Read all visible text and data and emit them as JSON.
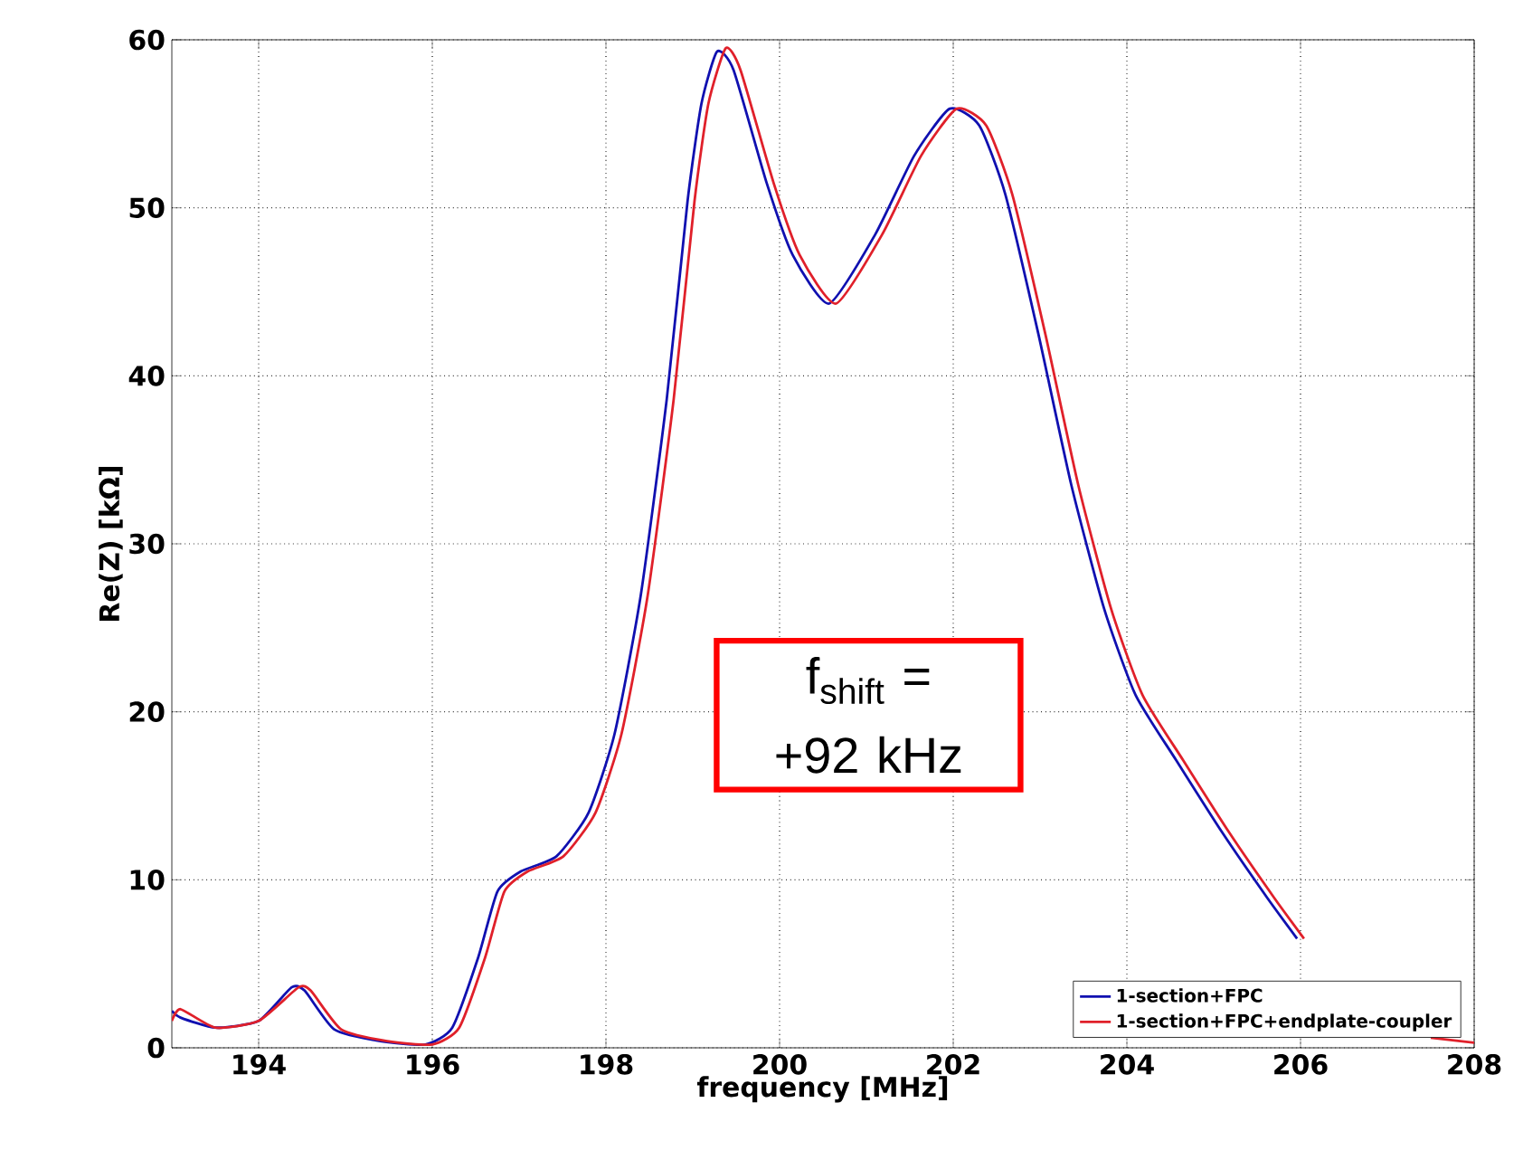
{
  "chart_data": {
    "type": "line",
    "xlabel": "frequency [MHz]",
    "ylabel": "Re(Z) [kΩ]",
    "xlim": [
      193,
      208
    ],
    "xticks": [
      194,
      196,
      198,
      200,
      202,
      204,
      206,
      208
    ],
    "ylim": [
      0,
      60
    ],
    "yticks": [
      0,
      10,
      20,
      30,
      40,
      50,
      60
    ],
    "grid": true,
    "legend": "bottom right",
    "line_style": "solid",
    "marker": "none",
    "annotations": [
      "f$_{shift}$ = +92 kHz"
    ],
    "series": [
      {
        "name": "1-section+FPC",
        "color": "#1010b0",
        "x": [
          193.0,
          193.1,
          193.5,
          194.0,
          194.38,
          194.53,
          194.87,
          195.4,
          195.92,
          196.23,
          196.53,
          196.75,
          197.02,
          197.43,
          197.8,
          198.1,
          198.4,
          198.7,
          198.94,
          199.1,
          199.28,
          199.47,
          199.85,
          200.15,
          200.57,
          201.1,
          201.55,
          201.96,
          202.3,
          202.6,
          202.98,
          203.36,
          203.74,
          204.1,
          204.57,
          205.1,
          205.62,
          205.96
        ],
        "values": [
          2.2,
          1.8,
          1.2,
          1.6,
          3.6,
          3.4,
          1.1,
          0.4,
          0.2,
          1.2,
          5.4,
          9.3,
          10.5,
          11.4,
          14,
          18.7,
          26.9,
          38.6,
          50.4,
          56.2,
          59.3,
          58.2,
          51.5,
          47.2,
          44.3,
          48.4,
          53.1,
          55.9,
          54.9,
          50.8,
          42.5,
          33.5,
          26.1,
          21.0,
          17.1,
          12.8,
          8.9,
          6.5
        ]
      },
      {
        "name": "1-section+FPC+endplate-coupler",
        "color": "#e0202a",
        "x": [
          193.0,
          193.1,
          193.5,
          194.0,
          194.46,
          194.6,
          194.95,
          195.48,
          196.0,
          196.31,
          196.61,
          196.83,
          197.1,
          197.51,
          197.88,
          198.18,
          198.48,
          198.78,
          199.02,
          199.18,
          199.38,
          199.55,
          199.93,
          200.23,
          200.65,
          201.18,
          201.63,
          202.04,
          202.38,
          202.68,
          203.06,
          203.44,
          203.82,
          204.18,
          204.65,
          205.18,
          205.7,
          206.04,
          206.8,
          207.5,
          208.0
        ],
        "values": [
          1.6,
          2.3,
          1.2,
          1.6,
          3.6,
          3.4,
          1.1,
          0.4,
          0.2,
          1.2,
          5.4,
          9.3,
          10.5,
          11.4,
          14,
          18.7,
          26.9,
          38.6,
          50.4,
          56.2,
          59.5,
          58.2,
          51.5,
          47.2,
          44.3,
          48.4,
          53.1,
          55.9,
          54.9,
          50.8,
          42.5,
          33.5,
          26.1,
          21.0,
          17.1,
          12.8,
          8.9,
          6.5,
          null,
          0.6,
          0.3
        ]
      }
    ]
  }
}
